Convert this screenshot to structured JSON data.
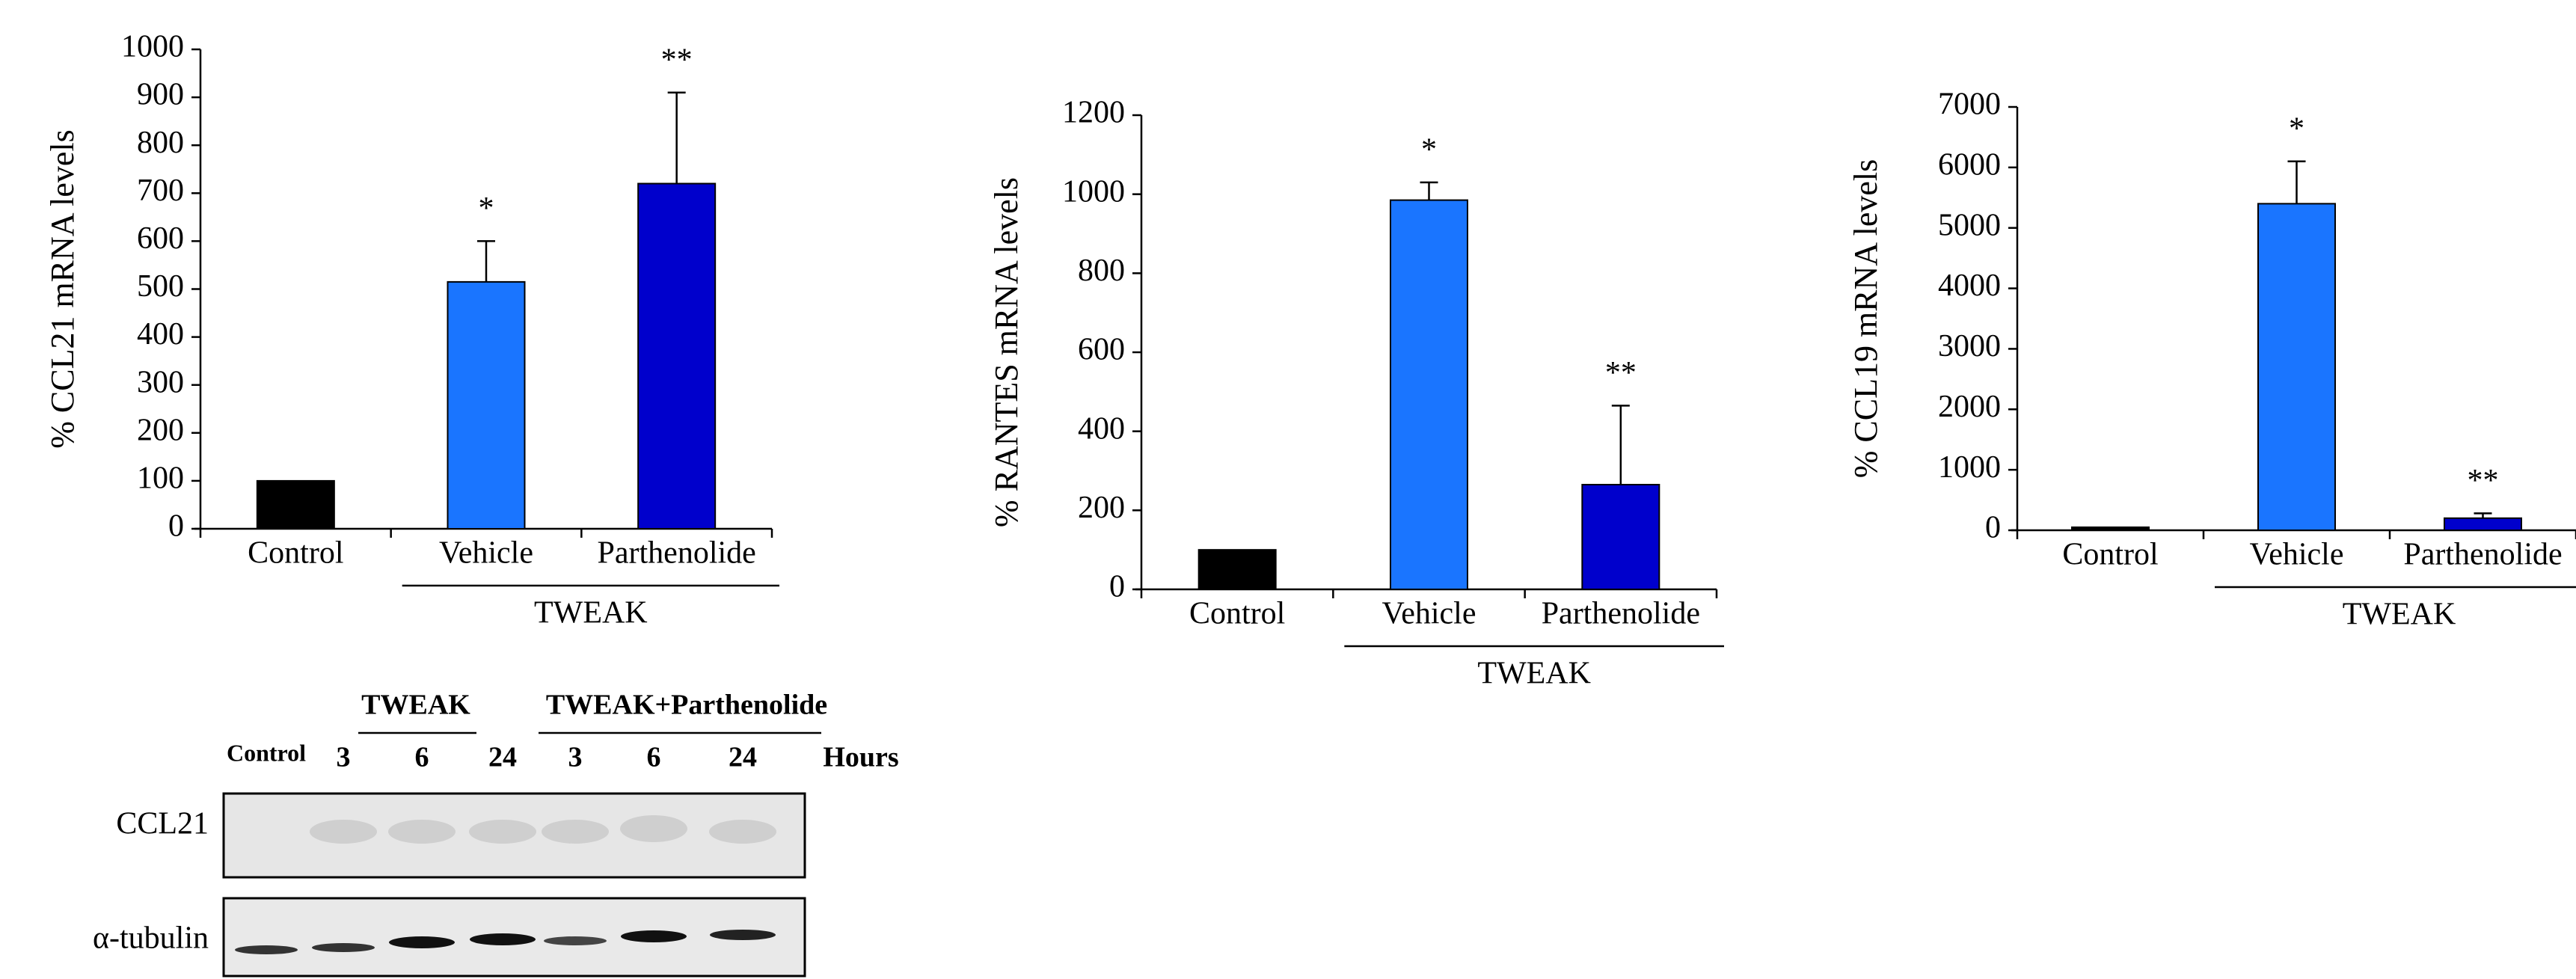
{
  "chart_data": [
    {
      "type": "bar",
      "y_label": "% CCL21 mRNA levels",
      "categories": [
        "Control",
        "Vehicle",
        "Parthenolide"
      ],
      "values": [
        100,
        515,
        720
      ],
      "errors": [
        0,
        85,
        190
      ],
      "colors": [
        "#000000",
        "#1a75ff",
        "#0000cc"
      ],
      "annotations": [
        null,
        "*",
        "**"
      ],
      "group_label": "TWEAK",
      "ylim": [
        0,
        1000
      ],
      "yticks": [
        0,
        100,
        200,
        300,
        400,
        500,
        600,
        700,
        800,
        900,
        1000
      ]
    },
    {
      "type": "bar",
      "y_label": "% RANTES mRNA levels",
      "categories": [
        "Control",
        "Vehicle",
        "Parthenolide"
      ],
      "values": [
        100,
        985,
        265
      ],
      "errors": [
        0,
        45,
        200
      ],
      "colors": [
        "#000000",
        "#1a75ff",
        "#0000cc"
      ],
      "annotations": [
        null,
        "*",
        "**"
      ],
      "group_label": "TWEAK",
      "ylim": [
        0,
        1200
      ],
      "yticks": [
        0,
        200,
        400,
        600,
        800,
        1000,
        1200
      ]
    },
    {
      "type": "bar",
      "y_label": "% CCL19 mRNA levels",
      "categories": [
        "Control",
        "Vehicle",
        "Parthenolide"
      ],
      "values": [
        50,
        5400,
        200
      ],
      "errors": [
        0,
        700,
        80
      ],
      "colors": [
        "#000000",
        "#1a75ff",
        "#0000cc"
      ],
      "annotations": [
        null,
        "*",
        "**"
      ],
      "group_label": "TWEAK",
      "ylim": [
        0,
        7000
      ],
      "yticks": [
        0,
        1000,
        2000,
        3000,
        4000,
        5000,
        6000,
        7000
      ]
    }
  ],
  "blot": {
    "groups": [
      "TWEAK",
      "TWEAK+Parthenolide"
    ],
    "lanes": [
      "Control",
      "3",
      "6",
      "24",
      "3",
      "6",
      "24"
    ],
    "unit": "Hours",
    "rows": [
      "CCL21",
      "α-tubulin"
    ]
  }
}
